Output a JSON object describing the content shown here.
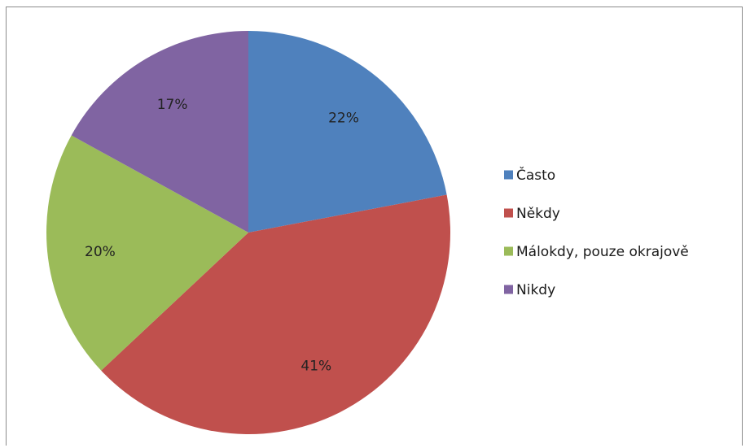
{
  "chart_data": {
    "type": "pie",
    "categories": [
      "Často",
      "Někdy",
      "Málokdy, pouze okrajově",
      "Nikdy"
    ],
    "values": [
      22,
      41,
      20,
      17
    ],
    "value_labels": [
      "22%",
      "41%",
      "20%",
      "17%"
    ],
    "colors": [
      "#4F81BD",
      "#C0504D",
      "#9BBB59",
      "#8064A2"
    ],
    "start_angle_deg": 0,
    "direction": "clockwise",
    "legend": {
      "placement": "right",
      "entries": [
        "Často",
        "Někdy",
        "Málokdy, pouze okrajově",
        "Nikdy"
      ]
    }
  }
}
